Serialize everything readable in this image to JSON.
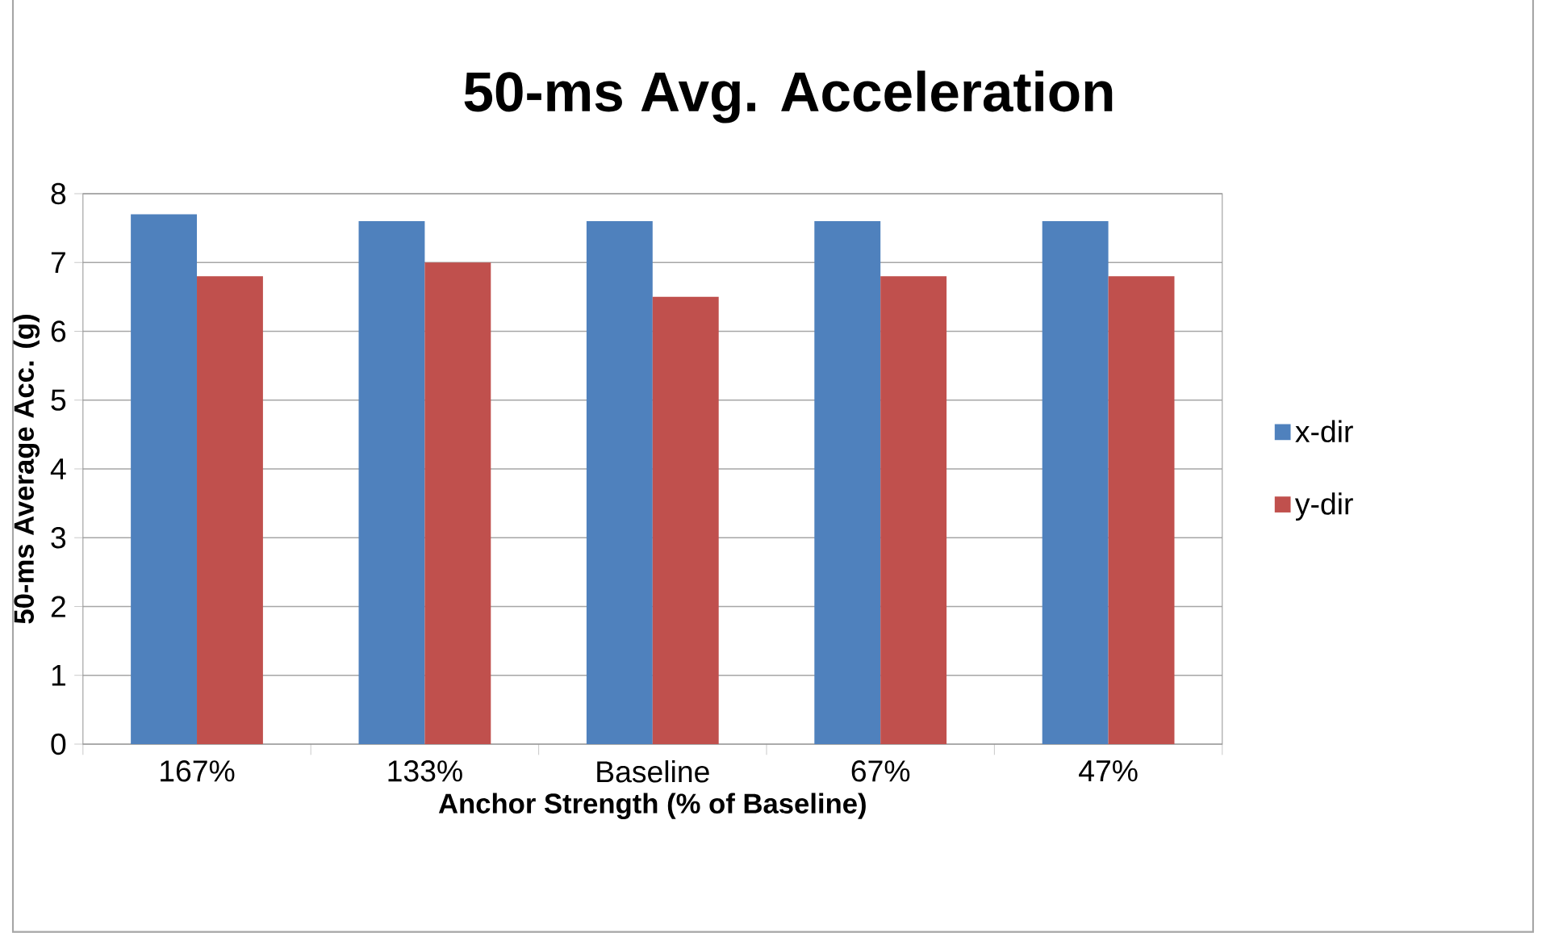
{
  "chart_data": {
    "type": "bar",
    "title": "50-ms Avg. Acceleration",
    "xlabel": "Anchor Strength (% of Baseline)",
    "ylabel": "50-ms Average Acc. (g)",
    "categories": [
      "167%",
      "133%",
      "Baseline",
      "67%",
      "47%"
    ],
    "series": [
      {
        "name": "x-dir",
        "color": "#4f81bd",
        "values": [
          7.7,
          7.6,
          7.6,
          7.6,
          7.6
        ]
      },
      {
        "name": "y-dir",
        "color": "#c0504d",
        "values": [
          6.8,
          7.0,
          6.5,
          6.8,
          6.8
        ]
      }
    ],
    "ylim": [
      0,
      8
    ],
    "yticks": [
      0,
      1,
      2,
      3,
      4,
      5,
      6,
      7,
      8
    ],
    "grid": "y",
    "legend": "right"
  }
}
